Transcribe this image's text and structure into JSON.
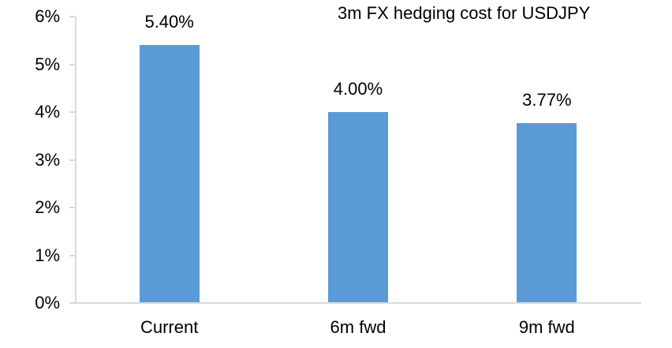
{
  "chart_data": {
    "type": "bar",
    "title": "3m FX hedging cost for USDJPY",
    "categories": [
      "Current",
      "6m fwd",
      "9m fwd"
    ],
    "values": [
      5.4,
      4.0,
      3.77
    ],
    "data_labels": [
      "5.40%",
      "4.00%",
      "3.77%"
    ],
    "ytick_labels": [
      "0%",
      "1%",
      "2%",
      "3%",
      "4%",
      "5%",
      "6%"
    ],
    "ylim": [
      0,
      6
    ],
    "ytick_step": 1,
    "xlabel": "",
    "ylabel": "",
    "grid": false,
    "legend": "none",
    "bar_color": "#5B9BD5",
    "axis_color": "#D9D9D9",
    "text_color": "#000000",
    "background": "#FFFFFF"
  }
}
